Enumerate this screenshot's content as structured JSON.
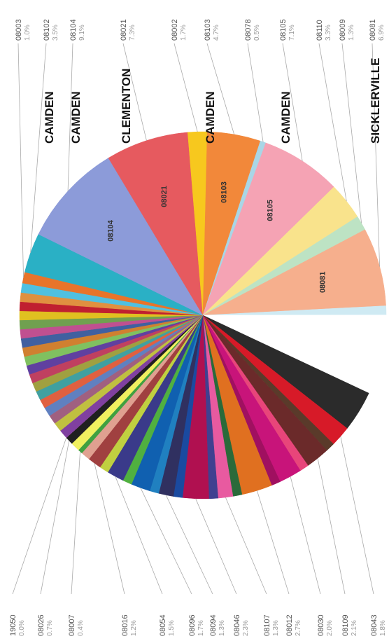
{
  "chart_data": {
    "type": "pie",
    "categories": [
      "08003",
      "08102",
      "08104",
      "08021",
      "08002",
      "08103",
      "08078",
      "08105",
      "08110",
      "08009",
      "08081",
      null,
      null,
      null,
      "08043",
      null,
      "08109",
      null,
      "08030",
      null,
      "08012",
      null,
      "08107",
      null,
      "08046",
      null,
      "08094",
      null,
      "08096",
      null,
      "08054",
      null,
      "08016",
      null,
      "08007",
      null,
      "08026",
      "19050",
      null,
      null,
      null,
      null,
      null,
      null,
      null,
      null,
      null,
      null,
      null,
      null,
      null,
      null,
      null,
      null,
      null,
      null
    ],
    "values": [
      1.0,
      3.5,
      9.1,
      7.3,
      1.7,
      4.7,
      0.5,
      7.1,
      3.3,
      1.3,
      6.9,
      0.8,
      7.0,
      3.6,
      1.8,
      0.8,
      2.1,
      0.8,
      2.0,
      0.8,
      2.7,
      0.8,
      1.3,
      0.8,
      2.3,
      0.8,
      1.3,
      0.8,
      1.7,
      0.8,
      1.5,
      0.8,
      1.2,
      0.8,
      0.4,
      0.8,
      0.7,
      0.0,
      0.8,
      0.8,
      0.8,
      0.8,
      0.8,
      0.8,
      0.8,
      0.8,
      0.8,
      0.8,
      0.8,
      0.8,
      0.8,
      0.8,
      0.8,
      0.8,
      0.8,
      0.8
    ],
    "value_labels": [
      "1.0%",
      "3.5%",
      "9.1%",
      "7.3%",
      "1.7%",
      "4.7%",
      "0.5%",
      "7.1%",
      "3.3%",
      "1.3%",
      "6.9%",
      null,
      null,
      null,
      "1.8%",
      null,
      "2.1%",
      null,
      "2.0%",
      null,
      "2.7%",
      null,
      "1.3%",
      null,
      "2.3%",
      null,
      "1.3%",
      null,
      "1.7%",
      null,
      "1.5%",
      null,
      "1.2%",
      null,
      "0.4%",
      null,
      "0.7%",
      "0.0%",
      null,
      null,
      null,
      null,
      null,
      null,
      null,
      null,
      null,
      null,
      null,
      null,
      null,
      null,
      null,
      null,
      null,
      null
    ],
    "cities": [
      null,
      "CAMDEN",
      "CAMDEN",
      "CLEMENTON",
      null,
      "CAMDEN",
      null,
      "CAMDEN",
      null,
      null,
      "SICKLERVILLE",
      null,
      null,
      null,
      null,
      null,
      null,
      null,
      null,
      null,
      null,
      null,
      null,
      null,
      null,
      null,
      null,
      null,
      null,
      null,
      null,
      null,
      null,
      null,
      null,
      null,
      null,
      null,
      null,
      null,
      null,
      null,
      null,
      null,
      null,
      null,
      null,
      null,
      null,
      null,
      null,
      null,
      null,
      null,
      null,
      null
    ],
    "colors": [
      "#e8742a",
      "#2ab0c5",
      "#8c9bd9",
      "#e65a5f",
      "#f7c81e",
      "#f2883a",
      "#a9d6e6",
      "#f5a3b4",
      "#f9e38c",
      "#bde3c4",
      "#f6af8d",
      "#cfeaf3",
      "#ffffff",
      "#2b2b2b",
      "#d71a28",
      "#5a3a2a",
      "#6b2a2a",
      "#e8457a",
      "#c8147a",
      "#a01060",
      "#e07020",
      "#2a6a3a",
      "#e85aa0",
      "#404090",
      "#b01050",
      "#1a4aa0",
      "#303060",
      "#2080c0",
      "#1060b0",
      "#50b040",
      "#3a3a8a",
      "#c0d040",
      "#a04040",
      "#e0a090",
      "#40a040",
      "#f0f060",
      "#202020",
      "#d04080",
      "#8040a0",
      "#c0c040",
      "#a06080",
      "#6080c0",
      "#e06040",
      "#40a0a0",
      "#a0a040",
      "#c04060",
      "#6040a0",
      "#80c060",
      "#d08030",
      "#4060a0",
      "#c05090",
      "#70a050",
      "#e0c020",
      "#c02030",
      "#e09040",
      "#50c0e0"
    ]
  }
}
